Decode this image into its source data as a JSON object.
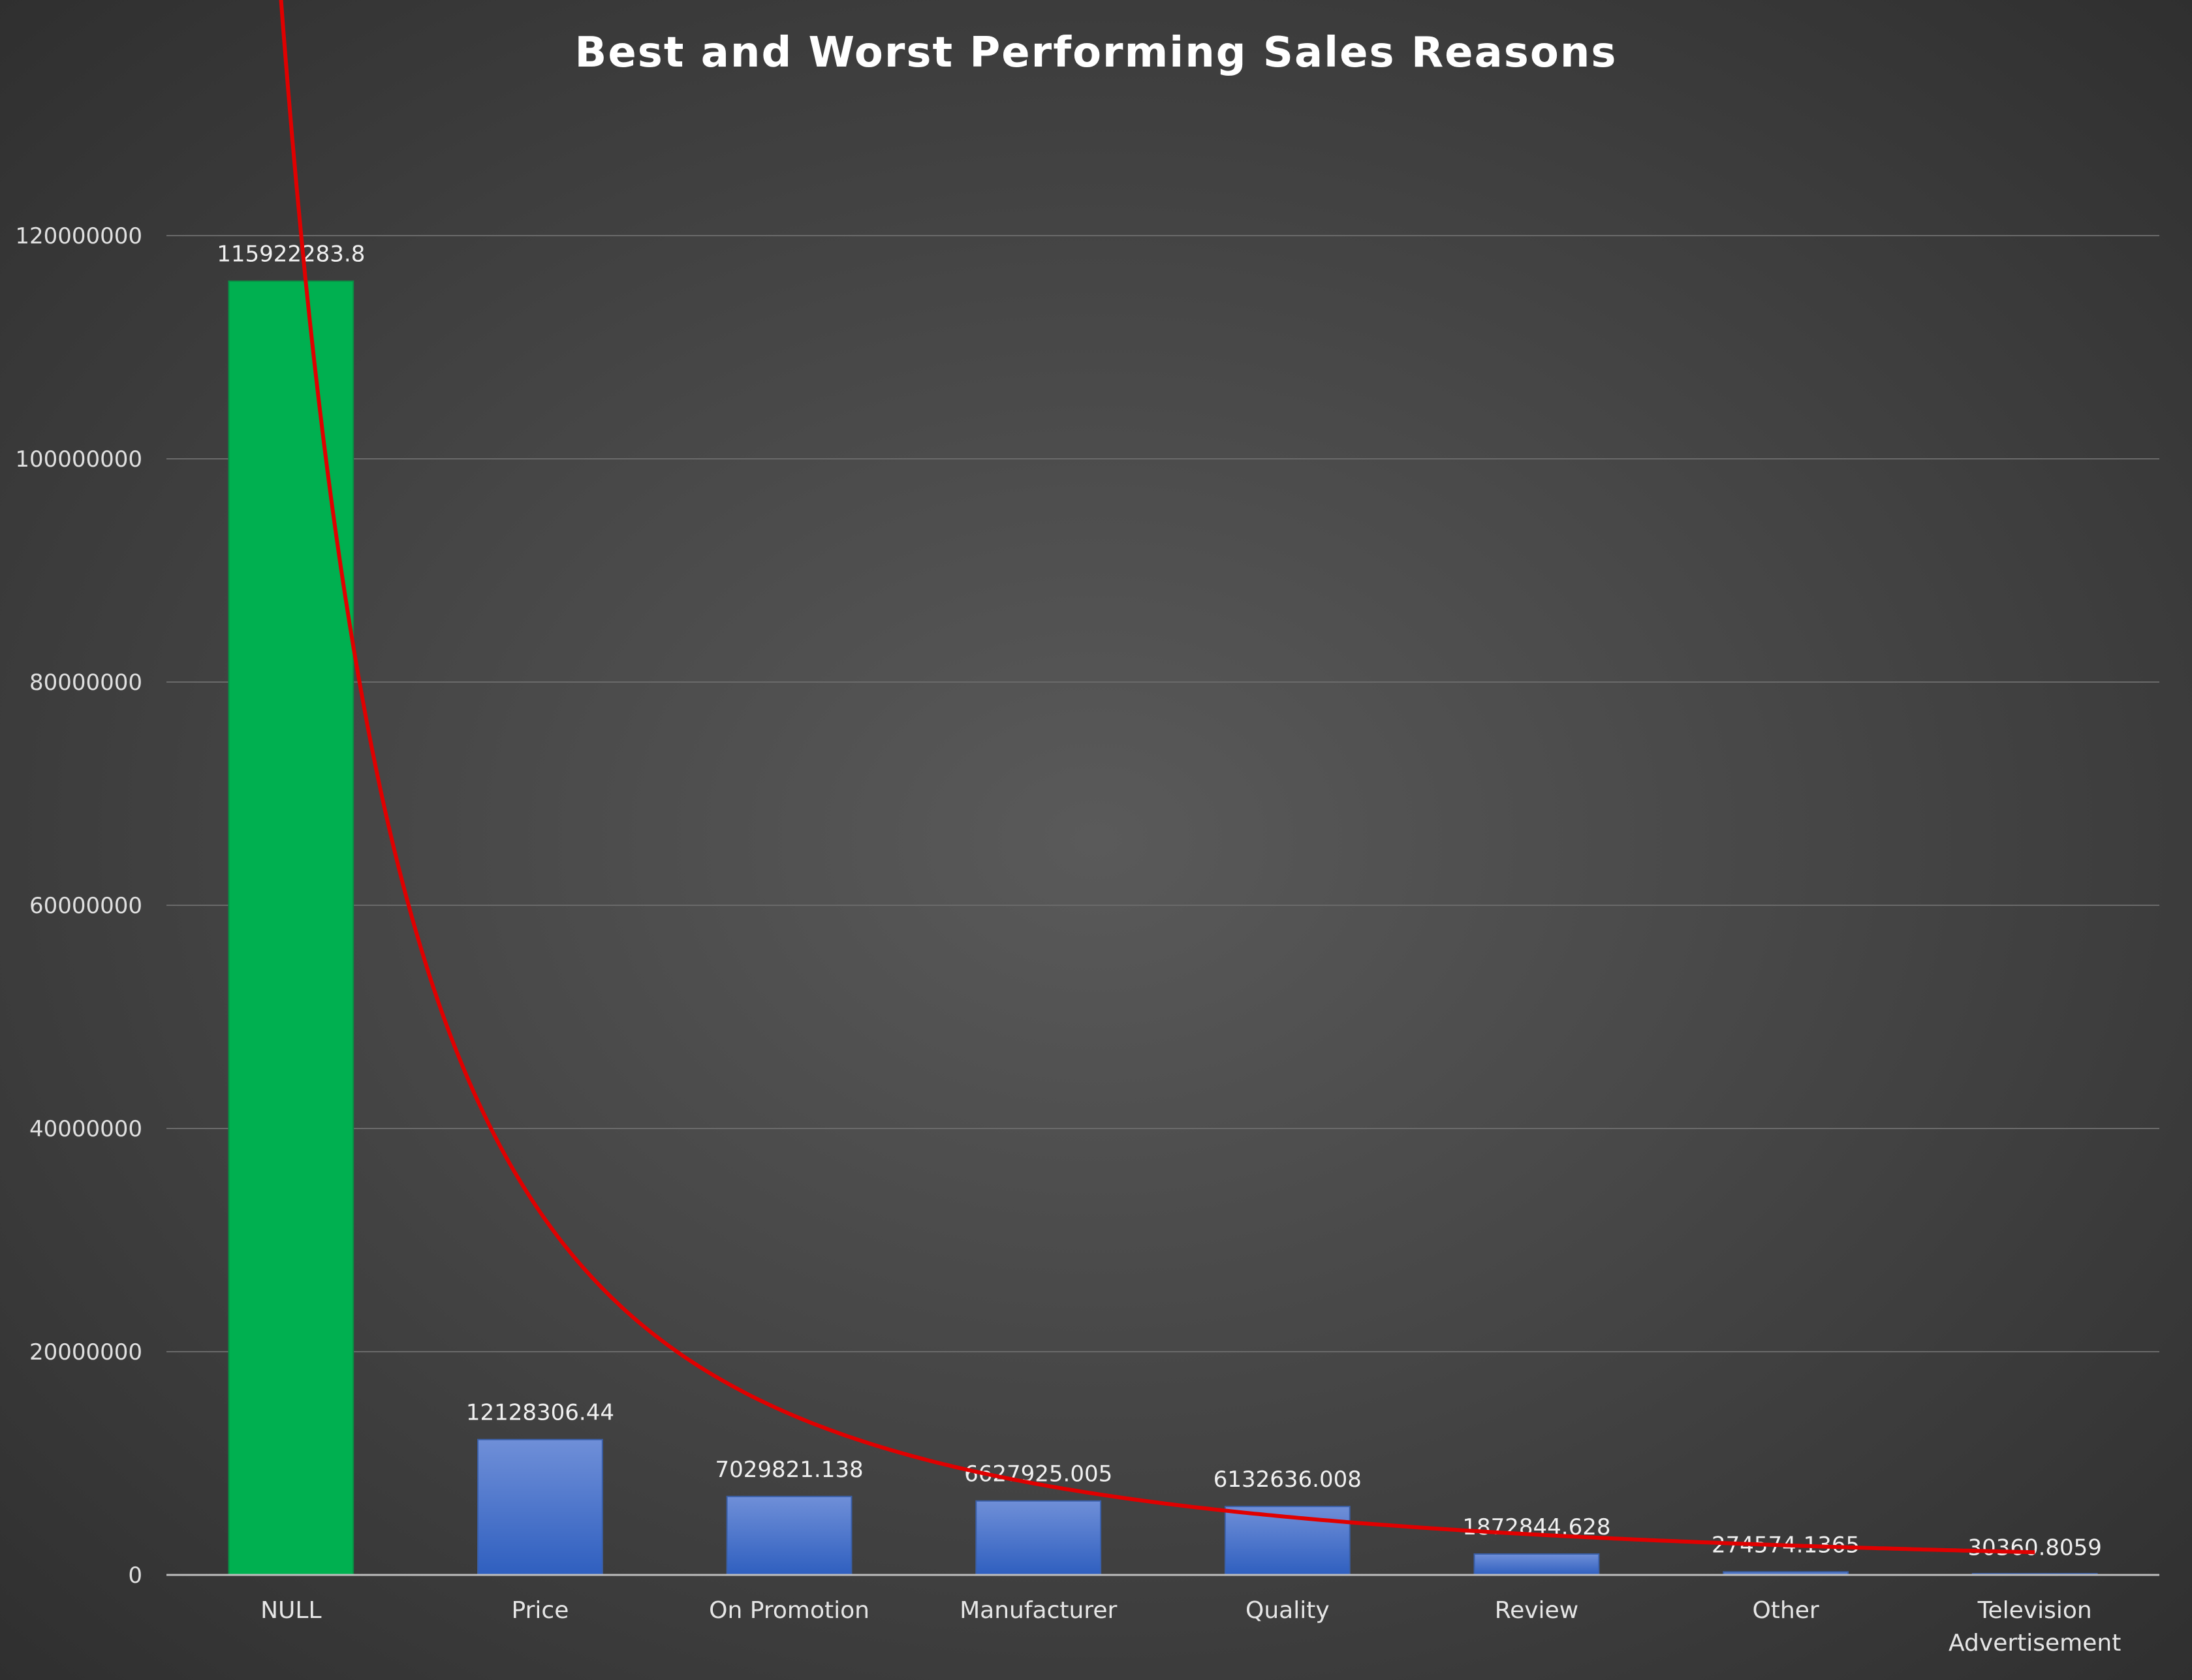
{
  "chart_data": {
    "type": "bar",
    "title": "Best and Worst Performing Sales Reasons",
    "xlabel": "",
    "ylabel": "",
    "ylim": [
      0,
      120000000
    ],
    "yticks": [
      0,
      20000000,
      40000000,
      60000000,
      80000000,
      100000000,
      120000000
    ],
    "yticks_labels": [
      "0",
      "20000000",
      "40000000",
      "60000000",
      "80000000",
      "100000000",
      "120000000"
    ],
    "categories": [
      "NULL",
      "Price",
      "On Promotion",
      "Manufacturer",
      "Quality",
      "Review",
      "Other",
      "Television Advertisement"
    ],
    "values": [
      115922283.8,
      12128306.44,
      7029821.138,
      6627925.005,
      6132636.008,
      1872844.628,
      274574.1365,
      30360.8059
    ],
    "value_labels": [
      "115922283.8",
      "12128306.44",
      "7029821.138",
      "6627925.005",
      "6132636.008",
      "1872844.628",
      "274574.1365",
      "30360.8059"
    ],
    "bar_colors": [
      "#00b050",
      "#4472c4",
      "#4472c4",
      "#4472c4",
      "#4472c4",
      "#4472c4",
      "#4472c4",
      "#4472c4"
    ],
    "highlight_color": "#00b050",
    "bar_color": "#4472c4",
    "trendline": {
      "type": "power",
      "color": "#e00000",
      "coefficient": 130000000,
      "exponent": -2.0
    },
    "grid": true,
    "legend": "none"
  }
}
